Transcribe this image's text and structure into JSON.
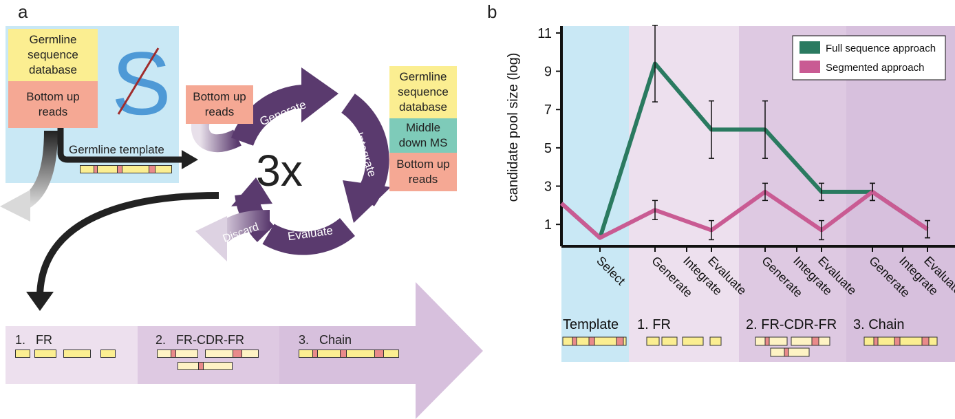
{
  "panels": {
    "a": "a",
    "b": "b"
  },
  "colors": {
    "yellow": "#fbee91",
    "salmon": "#f5a894",
    "teal": "#7ecbb9",
    "lightblue": "#c9e8f5",
    "purple_dark": "#5a3a6e",
    "lavender1": "#ede0ee",
    "lavender2": "#dec9e2",
    "lavender3": "#d7c0dd",
    "full_line": "#2a7a60",
    "seg_line": "#c95b93",
    "cdr": "#e98a8a"
  },
  "panel_a": {
    "germline_db": "Germline\nsequence\ndatabase",
    "bottom_up": "Bottom up\nreads",
    "logo_letter": "S",
    "germline_template": "Germline template",
    "cycle": {
      "bottom_up": "Bottom up\nreads",
      "generate": "Generate",
      "integrate": "Integrate",
      "evaluate": "Evaluate",
      "discard": "Discard",
      "center": "3x"
    },
    "right_stack": {
      "germline_db": "Germline\nsequence\ndatabase",
      "middle_down": "Middle\ndown MS",
      "bottom_up": "Bottom up\nreads"
    },
    "stages": [
      {
        "num": "1.",
        "name": "FR"
      },
      {
        "num": "2.",
        "name": "FR-CDR-FR"
      },
      {
        "num": "3.",
        "name": "Chain"
      }
    ]
  },
  "chart_data": {
    "type": "line",
    "ylabel": "candidate pool size (log)",
    "yticks": [
      "1",
      "3",
      "5",
      "7",
      "9",
      "11"
    ],
    "ylim": [
      0,
      11.5
    ],
    "categories": [
      "",
      "Select",
      "Generate",
      "Integrate",
      "Evaluate",
      "Generate",
      "Integrate",
      "Evaluate",
      "Generate",
      "Integrate",
      "Evaluate"
    ],
    "series": [
      {
        "name": "Full sequence approach",
        "color": "#2a7a60",
        "values": [
          2.1,
          0.3,
          9.4,
          null,
          5.95,
          5.95,
          null,
          2.7,
          2.7,
          null,
          0.75
        ],
        "errors": [
          null,
          null,
          2.0,
          null,
          1.5,
          1.5,
          null,
          0.45,
          0.45,
          null,
          0.45
        ]
      },
      {
        "name": "Segmented approach",
        "color": "#c95b93",
        "values": [
          2.1,
          0.3,
          1.75,
          null,
          0.7,
          2.7,
          null,
          0.7,
          2.7,
          null,
          0.75
        ],
        "errors": [
          null,
          null,
          0.5,
          null,
          0.5,
          0.45,
          null,
          0.5,
          0.45,
          null,
          0.45
        ]
      }
    ],
    "legend_position": "top-right",
    "bottom_labels": [
      "Template",
      "1. FR",
      "2. FR-CDR-FR",
      "3. Chain"
    ]
  }
}
